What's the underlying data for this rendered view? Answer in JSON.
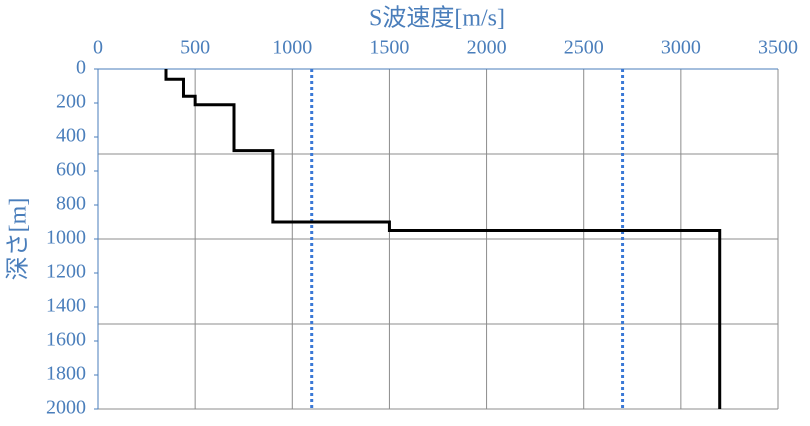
{
  "chart_data": {
    "type": "line",
    "x_label": "S波速度[m/s]",
    "y_label": "深さ[m]",
    "xlim": [
      0,
      3500
    ],
    "xticks": [
      0,
      500,
      1000,
      1500,
      2000,
      2500,
      3000,
      3500
    ],
    "ylim": [
      0,
      2000
    ],
    "yticks": [
      0,
      200,
      400,
      600,
      800,
      1000,
      1200,
      1400,
      1600,
      1800,
      2000
    ],
    "y_inverted": true,
    "x_axis_position": "top",
    "x_grid": true,
    "y_gridlines": [
      500,
      1000,
      1500,
      2000
    ],
    "series": [
      {
        "color": "#000000",
        "x": [
          350,
          350,
          440,
          440,
          500,
          500,
          700,
          700,
          900,
          900,
          1500,
          1500,
          3200,
          3200
        ],
        "values": [
          0,
          60,
          60,
          160,
          160,
          210,
          210,
          480,
          480,
          900,
          900,
          950,
          950,
          2000
        ]
      }
    ],
    "vlines": {
      "color": "#3a78d6",
      "values": [
        1100,
        2700
      ]
    }
  }
}
